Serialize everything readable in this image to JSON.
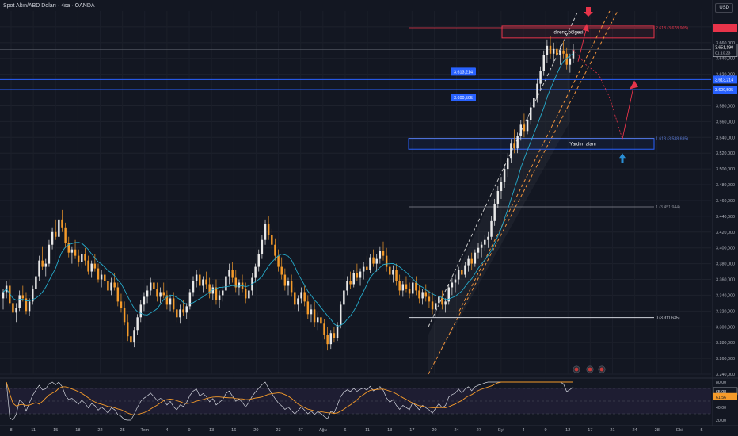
{
  "header": {
    "symbol_title": "Spot Altın/ABD Doları · 4sa · OANDA",
    "currency": "USD"
  },
  "colors": {
    "background": "#131722",
    "up_candle": "#e8e8e8",
    "down_candle": "#f59b2a",
    "ma_line": "#26a9c9",
    "resistance": "#e8344a",
    "support_zone": "#2962ff",
    "channel_dashed_white": "#c8c8c8",
    "channel_dashed_orange": "#f0923b",
    "rsi_line": "#d1d4dc",
    "rsi_ma": "#f59b2a",
    "projection": "#e8344a",
    "up_arrow": "#2a8fd6"
  },
  "chart_data": {
    "type": "candlestick",
    "title": "Spot Altın/ABD Doları · 4sa · OANDA",
    "currency": "USD",
    "ylim": [
      3240,
      3700
    ],
    "y_ticks": [
      "3.240,000",
      "3.260,000",
      "3.280,000",
      "3.300,000",
      "3.320,000",
      "3.340,000",
      "3.360,000",
      "3.380,000",
      "3.400,000",
      "3.420,000",
      "3.440,000",
      "3.460,000",
      "3.480,000",
      "3.500,000",
      "3.520,000",
      "3.540,000",
      "3.560,000",
      "3.580,000",
      "3.600,000",
      "3.620,000",
      "3.640,000",
      "3.660,000",
      "3.680,000"
    ],
    "x_ticks": [
      "8",
      "11",
      "15",
      "18",
      "22",
      "25",
      "Tem",
      "4",
      "9",
      "13",
      "16",
      "20",
      "23",
      "27",
      "Ağu",
      "6",
      "11",
      "13",
      "17",
      "20",
      "24",
      "27",
      "Eyl",
      "4",
      "9",
      "12",
      "17",
      "21",
      "24",
      "28",
      "Eki",
      "5"
    ],
    "last_price": {
      "value": "3.651,190",
      "countdown": "01:10:23"
    },
    "price_labels": [
      {
        "label": "3.613,214",
        "value": 3613.214
      },
      {
        "label": "3.600,505",
        "value": 3600.505
      }
    ],
    "fibonacci": [
      {
        "ratio": "2.618",
        "label": "2.618 (3.678,905)",
        "value": 3678.905
      },
      {
        "ratio": "1.618",
        "label": "1.618 (3.538,695)",
        "value": 3538.695
      },
      {
        "ratio": "1",
        "label": "1 (3.451,944)",
        "value": 3451.944
      },
      {
        "ratio": "0",
        "label": "0 (3.311,635)",
        "value": 3311.635
      }
    ],
    "zones": [
      {
        "label": "direnç bölgesi",
        "from": 3666,
        "to": 3681
      },
      {
        "label": "Yardım alanı",
        "from": 3525,
        "to": 3538.7
      }
    ],
    "support_levels": [
      3613.214,
      3600.505
    ],
    "rsi": {
      "ylim": [
        20,
        80
      ],
      "y_ticks": [
        "80,00",
        "60,00",
        "40,00",
        "20,00"
      ],
      "rsi_value": "65,08",
      "ma_value": "61,56",
      "levels": [
        70,
        50,
        30
      ]
    },
    "candles": [
      [
        3336,
        3348,
        3322,
        3344
      ],
      [
        3344,
        3358,
        3336,
        3352
      ],
      [
        3352,
        3360,
        3326,
        3330
      ],
      [
        3330,
        3342,
        3312,
        3318
      ],
      [
        3318,
        3330,
        3306,
        3324
      ],
      [
        3324,
        3346,
        3320,
        3340
      ],
      [
        3340,
        3352,
        3332,
        3336
      ],
      [
        3336,
        3344,
        3316,
        3320
      ],
      [
        3320,
        3336,
        3314,
        3332
      ],
      [
        3332,
        3352,
        3328,
        3348
      ],
      [
        3348,
        3370,
        3344,
        3364
      ],
      [
        3364,
        3390,
        3358,
        3384
      ],
      [
        3384,
        3402,
        3372,
        3376
      ],
      [
        3376,
        3386,
        3364,
        3380
      ],
      [
        3380,
        3410,
        3376,
        3404
      ],
      [
        3404,
        3426,
        3398,
        3420
      ],
      [
        3420,
        3436,
        3410,
        3414
      ],
      [
        3414,
        3442,
        3408,
        3436
      ],
      [
        3436,
        3448,
        3420,
        3426
      ],
      [
        3426,
        3432,
        3400,
        3406
      ],
      [
        3406,
        3414,
        3388,
        3394
      ],
      [
        3394,
        3402,
        3380,
        3398
      ],
      [
        3398,
        3410,
        3386,
        3390
      ],
      [
        3390,
        3398,
        3376,
        3382
      ],
      [
        3382,
        3396,
        3374,
        3392
      ],
      [
        3392,
        3400,
        3378,
        3384
      ],
      [
        3384,
        3390,
        3366,
        3370
      ],
      [
        3370,
        3384,
        3362,
        3380
      ],
      [
        3380,
        3392,
        3370,
        3374
      ],
      [
        3374,
        3380,
        3356,
        3360
      ],
      [
        3360,
        3372,
        3350,
        3366
      ],
      [
        3366,
        3376,
        3354,
        3358
      ],
      [
        3358,
        3364,
        3340,
        3346
      ],
      [
        3346,
        3362,
        3340,
        3356
      ],
      [
        3356,
        3368,
        3346,
        3350
      ],
      [
        3350,
        3356,
        3326,
        3332
      ],
      [
        3332,
        3342,
        3318,
        3324
      ],
      [
        3324,
        3332,
        3302,
        3306
      ],
      [
        3306,
        3316,
        3282,
        3288
      ],
      [
        3288,
        3300,
        3272,
        3280
      ],
      [
        3280,
        3300,
        3274,
        3296
      ],
      [
        3296,
        3316,
        3290,
        3312
      ],
      [
        3312,
        3334,
        3306,
        3328
      ],
      [
        3328,
        3344,
        3320,
        3338
      ],
      [
        3338,
        3352,
        3330,
        3346
      ],
      [
        3346,
        3362,
        3340,
        3356
      ],
      [
        3356,
        3368,
        3342,
        3348
      ],
      [
        3348,
        3356,
        3332,
        3338
      ],
      [
        3338,
        3350,
        3330,
        3344
      ],
      [
        3344,
        3356,
        3336,
        3340
      ],
      [
        3340,
        3346,
        3322,
        3328
      ],
      [
        3328,
        3340,
        3320,
        3336
      ],
      [
        3336,
        3344,
        3318,
        3322
      ],
      [
        3322,
        3334,
        3306,
        3312
      ],
      [
        3312,
        3328,
        3304,
        3322
      ],
      [
        3322,
        3334,
        3314,
        3318
      ],
      [
        3318,
        3330,
        3310,
        3326
      ],
      [
        3326,
        3348,
        3322,
        3344
      ],
      [
        3344,
        3364,
        3338,
        3358
      ],
      [
        3358,
        3372,
        3350,
        3366
      ],
      [
        3366,
        3374,
        3346,
        3352
      ],
      [
        3352,
        3364,
        3344,
        3360
      ],
      [
        3360,
        3370,
        3348,
        3354
      ],
      [
        3354,
        3362,
        3336,
        3342
      ],
      [
        3342,
        3354,
        3334,
        3350
      ],
      [
        3350,
        3360,
        3328,
        3334
      ],
      [
        3334,
        3346,
        3324,
        3340
      ],
      [
        3340,
        3352,
        3332,
        3346
      ],
      [
        3346,
        3370,
        3342,
        3364
      ],
      [
        3364,
        3380,
        3354,
        3372
      ],
      [
        3372,
        3382,
        3356,
        3362
      ],
      [
        3362,
        3372,
        3344,
        3350
      ],
      [
        3350,
        3360,
        3340,
        3356
      ],
      [
        3356,
        3366,
        3344,
        3348
      ],
      [
        3348,
        3356,
        3330,
        3336
      ],
      [
        3336,
        3350,
        3328,
        3346
      ],
      [
        3346,
        3368,
        3340,
        3362
      ],
      [
        3362,
        3380,
        3356,
        3376
      ],
      [
        3376,
        3398,
        3370,
        3392
      ],
      [
        3392,
        3416,
        3386,
        3410
      ],
      [
        3410,
        3436,
        3404,
        3430
      ],
      [
        3430,
        3440,
        3410,
        3416
      ],
      [
        3416,
        3424,
        3398,
        3404
      ],
      [
        3404,
        3412,
        3384,
        3390
      ],
      [
        3390,
        3398,
        3370,
        3376
      ],
      [
        3376,
        3388,
        3360,
        3366
      ],
      [
        3366,
        3374,
        3346,
        3352
      ],
      [
        3352,
        3362,
        3340,
        3358
      ],
      [
        3358,
        3366,
        3338,
        3344
      ],
      [
        3344,
        3350,
        3322,
        3328
      ],
      [
        3328,
        3340,
        3320,
        3336
      ],
      [
        3336,
        3350,
        3330,
        3344
      ],
      [
        3344,
        3352,
        3326,
        3332
      ],
      [
        3332,
        3340,
        3310,
        3316
      ],
      [
        3316,
        3328,
        3306,
        3322
      ],
      [
        3322,
        3332,
        3300,
        3306
      ],
      [
        3306,
        3318,
        3296,
        3312
      ],
      [
        3312,
        3324,
        3300,
        3304
      ],
      [
        3304,
        3310,
        3284,
        3290
      ],
      [
        3290,
        3300,
        3270,
        3278
      ],
      [
        3278,
        3296,
        3272,
        3292
      ],
      [
        3292,
        3300,
        3280,
        3286
      ],
      [
        3286,
        3306,
        3282,
        3302
      ],
      [
        3302,
        3332,
        3298,
        3328
      ],
      [
        3328,
        3352,
        3322,
        3346
      ],
      [
        3346,
        3364,
        3340,
        3358
      ],
      [
        3358,
        3370,
        3348,
        3354
      ],
      [
        3354,
        3372,
        3350,
        3368
      ],
      [
        3368,
        3380,
        3358,
        3362
      ],
      [
        3362,
        3374,
        3352,
        3370
      ],
      [
        3370,
        3382,
        3360,
        3376
      ],
      [
        3376,
        3390,
        3366,
        3372
      ],
      [
        3372,
        3392,
        3368,
        3388
      ],
      [
        3388,
        3398,
        3376,
        3380
      ],
      [
        3380,
        3392,
        3370,
        3386
      ],
      [
        3386,
        3402,
        3380,
        3396
      ],
      [
        3396,
        3408,
        3384,
        3390
      ],
      [
        3390,
        3400,
        3370,
        3376
      ],
      [
        3376,
        3386,
        3360,
        3366
      ],
      [
        3366,
        3378,
        3356,
        3372
      ],
      [
        3372,
        3380,
        3352,
        3358
      ],
      [
        3358,
        3366,
        3340,
        3346
      ],
      [
        3346,
        3358,
        3338,
        3354
      ],
      [
        3354,
        3364,
        3344,
        3348
      ],
      [
        3348,
        3356,
        3336,
        3342
      ],
      [
        3342,
        3360,
        3338,
        3356
      ],
      [
        3356,
        3364,
        3340,
        3346
      ],
      [
        3346,
        3352,
        3330,
        3336
      ],
      [
        3336,
        3348,
        3328,
        3344
      ],
      [
        3344,
        3354,
        3332,
        3338
      ],
      [
        3338,
        3346,
        3324,
        3332
      ],
      [
        3332,
        3344,
        3316,
        3322
      ],
      [
        3322,
        3334,
        3312,
        3330
      ],
      [
        3330,
        3344,
        3326,
        3338
      ],
      [
        3338,
        3346,
        3322,
        3328
      ],
      [
        3328,
        3336,
        3318,
        3332
      ],
      [
        3332,
        3354,
        3328,
        3350
      ],
      [
        3350,
        3362,
        3340,
        3356
      ],
      [
        3356,
        3366,
        3344,
        3360
      ],
      [
        3360,
        3376,
        3354,
        3372
      ],
      [
        3372,
        3380,
        3360,
        3366
      ],
      [
        3366,
        3382,
        3362,
        3378
      ],
      [
        3378,
        3390,
        3370,
        3386
      ],
      [
        3386,
        3394,
        3372,
        3380
      ],
      [
        3380,
        3398,
        3376,
        3394
      ],
      [
        3394,
        3406,
        3386,
        3400
      ],
      [
        3400,
        3408,
        3388,
        3404
      ],
      [
        3404,
        3416,
        3396,
        3410
      ],
      [
        3410,
        3420,
        3400,
        3414
      ],
      [
        3414,
        3440,
        3410,
        3434
      ],
      [
        3434,
        3462,
        3428,
        3456
      ],
      [
        3456,
        3478,
        3450,
        3472
      ],
      [
        3472,
        3490,
        3462,
        3484
      ],
      [
        3484,
        3506,
        3476,
        3500
      ],
      [
        3500,
        3520,
        3490,
        3514
      ],
      [
        3514,
        3538,
        3508,
        3532
      ],
      [
        3532,
        3550,
        3520,
        3526
      ],
      [
        3526,
        3546,
        3520,
        3542
      ],
      [
        3542,
        3562,
        3536,
        3556
      ],
      [
        3556,
        3570,
        3540,
        3548
      ],
      [
        3548,
        3566,
        3544,
        3562
      ],
      [
        3562,
        3584,
        3556,
        3578
      ],
      [
        3578,
        3596,
        3570,
        3590
      ],
      [
        3590,
        3614,
        3584,
        3608
      ],
      [
        3608,
        3630,
        3600,
        3624
      ],
      [
        3624,
        3650,
        3618,
        3644
      ],
      [
        3644,
        3664,
        3634,
        3656
      ],
      [
        3656,
        3668,
        3640,
        3646
      ],
      [
        3646,
        3660,
        3634,
        3652
      ],
      [
        3652,
        3662,
        3638,
        3644
      ],
      [
        3644,
        3656,
        3632,
        3650
      ],
      [
        3650,
        3662,
        3640,
        3646
      ],
      [
        3646,
        3654,
        3626,
        3632
      ],
      [
        3632,
        3646,
        3622,
        3640
      ],
      [
        3640,
        3658,
        3634,
        3651
      ]
    ]
  }
}
